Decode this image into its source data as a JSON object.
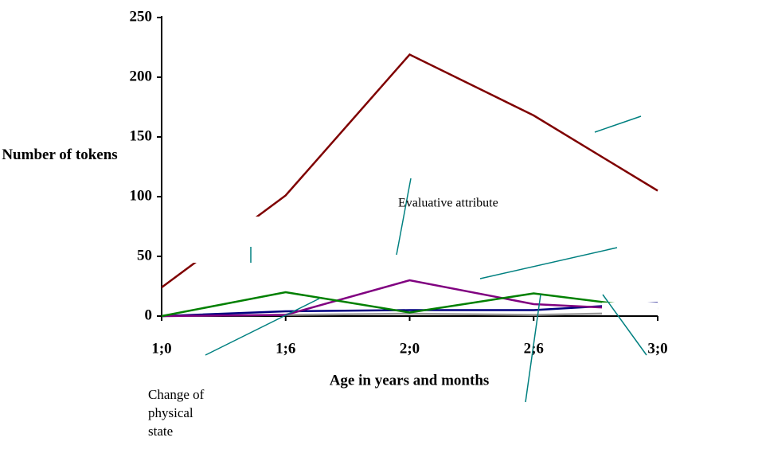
{
  "chart_data": {
    "type": "line",
    "y_label": "Number of tokens",
    "x_label": "Age in years and months",
    "categories": [
      "1;0",
      "1;6",
      "2;0",
      "2;6",
      "3;0"
    ],
    "ylim": [
      0,
      250
    ],
    "yticks": [
      0,
      50,
      100,
      150,
      200,
      250
    ],
    "series": [
      {
        "color": "#7f0000",
        "values": [
          24,
          101,
          219,
          168,
          105
        ]
      },
      {
        "color": "#008000",
        "values": [
          0,
          20,
          3,
          19,
          6
        ]
      },
      {
        "color": "#800080",
        "values": [
          0,
          1,
          30,
          10,
          5
        ]
      },
      {
        "color": "#000080",
        "values": [
          0,
          4,
          5,
          5,
          11
        ]
      },
      {
        "color": "#999999",
        "values": [
          0,
          1,
          2,
          1,
          3
        ]
      }
    ],
    "annotations": [
      "Evaluative attribute",
      "Change of physical state"
    ]
  }
}
